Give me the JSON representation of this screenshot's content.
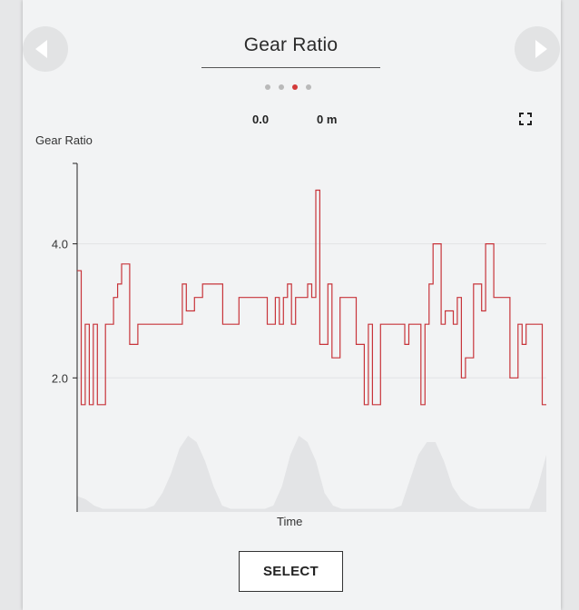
{
  "header": {
    "title": "Gear Ratio",
    "page_dots": [
      false,
      false,
      true,
      false
    ],
    "active_dot_color": "#d33a3a",
    "inactive_dot_color": "#b9b9b9"
  },
  "stats": {
    "value": "0.0",
    "distance": "0 m"
  },
  "icons": {
    "prev": "triangle-left-icon",
    "next": "triangle-right-icon",
    "fullscreen": "fullscreen-icon"
  },
  "actions": {
    "select_label": "SELECT"
  },
  "chart_data": {
    "type": "line",
    "title": "Gear Ratio",
    "xlabel": "Time",
    "ylabel": "Gear Ratio",
    "ylim": [
      0.0,
      5.2
    ],
    "yticks": [
      2.0,
      4.0
    ],
    "grid": true,
    "line_color": "#c8343a",
    "area_color": "#e3e4e6",
    "series": [
      {
        "values": [
          3.6,
          1.6,
          2.8,
          1.6,
          2.8,
          1.6,
          1.6,
          2.8,
          2.8,
          3.2,
          3.4,
          3.7,
          3.7,
          2.5,
          2.5,
          2.8,
          2.8,
          2.8,
          2.8,
          2.8,
          2.8,
          2.8,
          2.8,
          2.8,
          2.8,
          2.8,
          3.4,
          3.0,
          3.0,
          3.2,
          3.2,
          3.4,
          3.4,
          3.4,
          3.4,
          3.4,
          2.8,
          2.8,
          2.8,
          2.8,
          3.2,
          3.2,
          3.2,
          3.2,
          3.2,
          3.2,
          3.2,
          2.8,
          2.8,
          3.2,
          2.8,
          3.2,
          3.4,
          2.8,
          3.2,
          3.2,
          3.2,
          3.4,
          3.2,
          4.8,
          2.5,
          2.5,
          3.4,
          2.3,
          2.3,
          3.2,
          3.2,
          3.2,
          3.2,
          2.5,
          2.5,
          1.6,
          2.8,
          1.6,
          1.6,
          2.8,
          2.8,
          2.8,
          2.8,
          2.8,
          2.8,
          2.5,
          2.8,
          2.8,
          2.8,
          1.6,
          2.8,
          3.4,
          4.0,
          4.0,
          2.8,
          3.0,
          3.0,
          2.8,
          3.2,
          2.0,
          2.3,
          2.3,
          3.4,
          3.4,
          3.0,
          4.0,
          4.0,
          3.2,
          3.2,
          3.2,
          3.2,
          2.0,
          2.0,
          2.8,
          2.5,
          2.8,
          2.8,
          2.8,
          2.8,
          1.6
        ],
        "area_values": [
          0.25,
          0.2,
          0.1,
          0.05,
          0.05,
          0.05,
          0.05,
          0.05,
          0.05,
          0.1,
          0.3,
          0.6,
          1.0,
          1.2,
          1.1,
          0.8,
          0.4,
          0.1,
          0.05,
          0.05,
          0.05,
          0.05,
          0.05,
          0.1,
          0.4,
          0.9,
          1.2,
          1.1,
          0.8,
          0.3,
          0.1,
          0.05,
          0.05,
          0.05,
          0.05,
          0.05,
          0.05,
          0.05,
          0.1,
          0.5,
          0.9,
          1.1,
          1.1,
          0.8,
          0.4,
          0.2,
          0.1,
          0.05,
          0.05,
          0.05,
          0.05,
          0.05,
          0.05,
          0.05,
          0.4,
          0.9
        ]
      }
    ]
  }
}
